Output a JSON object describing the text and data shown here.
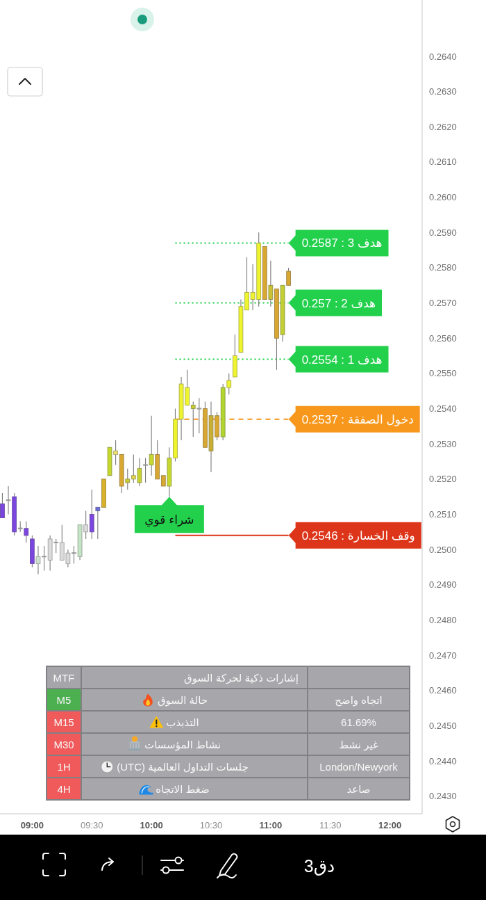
{
  "chart_data": [
    {
      "type": "candlestick",
      "x": [
        8.75,
        8.8,
        8.85,
        8.9,
        8.95,
        9.0,
        9.05,
        9.1,
        9.15,
        9.2,
        9.25,
        9.3,
        9.35,
        9.4,
        9.45,
        9.5,
        9.55,
        9.6,
        9.65,
        9.7,
        9.75,
        9.8,
        9.85,
        9.9,
        9.95,
        10.0,
        10.05,
        10.1,
        10.15,
        10.2,
        10.25,
        10.3,
        10.35,
        10.4,
        10.45,
        10.5,
        10.55,
        10.6,
        10.65,
        10.7,
        10.75,
        10.8,
        10.85,
        10.9,
        10.95,
        11.0,
        11.05,
        11.1,
        11.15
      ],
      "ohlc": [
        [
          0.2509,
          0.2516,
          0.2509,
          0.2513
        ],
        [
          0.2514,
          0.2518,
          0.251,
          0.2514
        ],
        [
          0.2515,
          0.2516,
          0.2504,
          0.2505
        ],
        [
          0.2506,
          0.2508,
          0.2505,
          0.2506
        ],
        [
          0.2506,
          0.2508,
          0.2502,
          0.2504
        ],
        [
          0.2503,
          0.2504,
          0.2495,
          0.2496
        ],
        [
          0.2496,
          0.2501,
          0.2493,
          0.2498
        ],
        [
          0.2498,
          0.2501,
          0.2494,
          0.2498
        ],
        [
          0.2497,
          0.2504,
          0.2494,
          0.2503
        ],
        [
          0.2502,
          0.2503,
          0.2499,
          0.2502
        ],
        [
          0.2502,
          0.2507,
          0.2497,
          0.2497
        ],
        [
          0.2496,
          0.25,
          0.2495,
          0.2499
        ],
        [
          0.2499,
          0.2501,
          0.2496,
          0.2499
        ],
        [
          0.2498,
          0.2507,
          0.2497,
          0.2507
        ],
        [
          0.2507,
          0.2511,
          0.2503,
          0.2505
        ],
        [
          0.2505,
          0.2517,
          0.2503,
          0.251
        ],
        [
          0.2511,
          0.2512,
          0.2503,
          0.2512
        ],
        [
          0.2512,
          0.252,
          0.2512,
          0.252
        ],
        [
          0.2521,
          0.2529,
          0.2521,
          0.2529
        ],
        [
          0.2528,
          0.2531,
          0.2524,
          0.2527
        ],
        [
          0.2527,
          0.2527,
          0.2516,
          0.2518
        ],
        [
          0.2519,
          0.2523,
          0.2517,
          0.252
        ],
        [
          0.252,
          0.2527,
          0.2519,
          0.2521
        ],
        [
          0.2519,
          0.2526,
          0.2518,
          0.2523
        ],
        [
          0.2524,
          0.2526,
          0.2519,
          0.2524
        ],
        [
          0.2524,
          0.2538,
          0.2521,
          0.2527
        ],
        [
          0.2527,
          0.2531,
          0.252,
          0.252
        ],
        [
          0.2521,
          0.2521,
          0.2518,
          0.2518
        ],
        [
          0.2518,
          0.2529,
          0.2515,
          0.2526
        ],
        [
          0.2526,
          0.254,
          0.2525,
          0.2537
        ],
        [
          0.2537,
          0.2549,
          0.2531,
          0.2547
        ],
        [
          0.2541,
          0.2551,
          0.2541,
          0.2546
        ],
        [
          0.2541,
          0.2542,
          0.2532,
          0.254
        ],
        [
          0.254,
          0.2543,
          0.2533,
          0.254
        ],
        [
          0.254,
          0.2542,
          0.2529,
          0.2529
        ],
        [
          0.2528,
          0.2542,
          0.2522,
          0.2538
        ],
        [
          0.2538,
          0.2539,
          0.2531,
          0.2532
        ],
        [
          0.2532,
          0.2547,
          0.2531,
          0.2546
        ],
        [
          0.2546,
          0.255,
          0.2544,
          0.2548
        ],
        [
          0.2549,
          0.2561,
          0.2549,
          0.2555
        ],
        [
          0.2556,
          0.2571,
          0.2556,
          0.2569
        ],
        [
          0.2568,
          0.2583,
          0.2568,
          0.2573
        ],
        [
          0.2571,
          0.2581,
          0.2568,
          0.2573
        ],
        [
          0.2571,
          0.259,
          0.2569,
          0.2587
        ],
        [
          0.2586,
          0.2586,
          0.2571,
          0.2571
        ],
        [
          0.2571,
          0.2582,
          0.2569,
          0.2575
        ],
        [
          0.2574,
          0.2574,
          0.2551,
          0.256
        ],
        [
          0.2561,
          0.2575,
          0.2559,
          0.2575
        ],
        [
          0.2579,
          0.258,
          0.2575,
          0.2575
        ]
      ],
      "colors": [
        "#7b45e0",
        "#9a9a9a",
        "#7b45e0",
        "#9a9a9a",
        "#7b45e0",
        "#7b45e0",
        "#cfe3d0",
        "#9a9a9a",
        "#dcdcdc",
        "#9a9a9a",
        "#dcdcdc",
        "#dcdcdc",
        "#9a9a9a",
        "#c5e3c5",
        "#dcdcdc",
        "#7b45e0",
        "#6d6fd8",
        "#d8b02a",
        "#c6d82e",
        "#f2e470",
        "#d8a832",
        "#c9cd32",
        "#e0d84a",
        "#c6d232",
        "#9a9a9a",
        "#c6d82e",
        "#d8a832",
        "#d8a832",
        "#c6d82e",
        "#eef52e",
        "#eef52e",
        "#eef52e",
        "#c9cd32",
        "#9a9a9a",
        "#d8a832",
        "#c9b032",
        "#d8a832",
        "#b2d62e",
        "#eef52e",
        "#eef52e",
        "#eef52e",
        "#eef52e",
        "#eef52e",
        "#eef52e",
        "#d8a832",
        "#c9c232",
        "#d8a832",
        "#c2cf32",
        "#d8a832"
      ],
      "series": [
        {
          "type": "line",
          "name": "هدف 3 : 0.2587",
          "color": "#22d04c",
          "line_style": "dotted",
          "values": [
            null,
            null,
            null,
            null,
            null,
            null,
            null,
            null,
            null,
            null,
            null,
            null,
            null,
            null,
            null,
            null,
            null,
            null,
            null,
            null,
            null,
            null,
            null,
            null,
            null,
            null,
            null,
            null,
            null,
            0.2587,
            0.2587,
            0.2587,
            0.2587,
            0.2587,
            0.2587,
            0.2587,
            0.2587,
            0.2587,
            0.2587,
            0.2587,
            0.2587,
            0.2587,
            0.2587,
            0.2587,
            0.2587,
            0.2587,
            0.2587,
            0.2587,
            0.2587
          ]
        },
        {
          "type": "line",
          "name": "هدف 2 : 0.257",
          "color": "#22d04c",
          "line_style": "dotted",
          "values": [
            null,
            null,
            null,
            null,
            null,
            null,
            null,
            null,
            null,
            null,
            null,
            null,
            null,
            null,
            null,
            null,
            null,
            null,
            null,
            null,
            null,
            null,
            null,
            null,
            null,
            null,
            null,
            null,
            null,
            0.257,
            0.257,
            0.257,
            0.257,
            0.257,
            0.257,
            0.257,
            0.257,
            0.257,
            0.257,
            0.257,
            0.257,
            0.257,
            0.257,
            0.257,
            0.257,
            0.257,
            0.257,
            0.257,
            0.257
          ]
        },
        {
          "type": "line",
          "name": "هدف 1 : 0.2554",
          "color": "#22d04c",
          "line_style": "dotted",
          "values": [
            null,
            null,
            null,
            null,
            null,
            null,
            null,
            null,
            null,
            null,
            null,
            null,
            null,
            null,
            null,
            null,
            null,
            null,
            null,
            null,
            null,
            null,
            null,
            null,
            null,
            null,
            null,
            null,
            null,
            0.2554,
            0.2554,
            0.2554,
            0.2554,
            0.2554,
            0.2554,
            0.2554,
            0.2554,
            0.2554,
            0.2554,
            0.2554,
            0.2554,
            0.2554,
            0.2554,
            0.2554,
            0.2554,
            0.2554,
            0.2554,
            0.2554,
            0.2554
          ]
        },
        {
          "type": "line",
          "name": "دخول الصفقة : 0.2537",
          "color": "#f7971c",
          "line_style": "dashed",
          "values": [
            null,
            null,
            null,
            null,
            null,
            null,
            null,
            null,
            null,
            null,
            null,
            null,
            null,
            null,
            null,
            null,
            null,
            null,
            null,
            null,
            null,
            null,
            null,
            null,
            null,
            null,
            null,
            null,
            null,
            0.2537,
            0.2537,
            0.2537,
            0.2537,
            0.2537,
            0.2537,
            0.2537,
            0.2537,
            0.2537,
            0.2537,
            0.2537,
            0.2537,
            0.2537,
            0.2537,
            0.2537,
            0.2537,
            0.2537,
            0.2537,
            0.2537,
            0.2537
          ]
        },
        {
          "type": "line",
          "name": "وقف الخسارة : 0.2546",
          "color": "#dd3519",
          "line_style": "solid",
          "values": [
            null,
            null,
            null,
            null,
            null,
            null,
            null,
            null,
            null,
            null,
            null,
            null,
            null,
            null,
            null,
            null,
            null,
            null,
            null,
            null,
            null,
            null,
            null,
            null,
            null,
            null,
            null,
            null,
            null,
            0.2504,
            0.2504,
            0.2504,
            0.2504,
            0.2504,
            0.2504,
            0.2504,
            0.2504,
            0.2504,
            0.2504,
            0.2504,
            0.2504,
            0.2504,
            0.2504,
            0.2504,
            0.2504,
            0.2504,
            0.2504,
            0.2504,
            0.2504
          ]
        }
      ],
      "annotations": [
        {
          "text": "شراء قوي",
          "x": 10.15,
          "y": 0.2515
        },
        "3دق"
      ],
      "xlim": [
        8.73,
        12.27
      ],
      "ylim": [
        0.2425,
        0.2656
      ],
      "xticks": [
        {
          "value": 9,
          "label": "09:00"
        },
        {
          "value": 9.5,
          "label": "09:30"
        },
        {
          "value": 10,
          "label": "10:00"
        },
        {
          "value": 10.5,
          "label": "10:30"
        },
        {
          "value": 11,
          "label": "11:00"
        },
        {
          "value": 11.5,
          "label": "11:30"
        },
        {
          "value": 12,
          "label": "12:00"
        }
      ],
      "yticks": [
        {
          "value": 0.243,
          "label": "0.2430"
        },
        {
          "value": 0.244,
          "label": "0.2440"
        },
        {
          "value": 0.245,
          "label": "0.2450"
        },
        {
          "value": 0.246,
          "label": "0.2460"
        },
        {
          "value": 0.247,
          "label": "0.2470"
        },
        {
          "value": 0.248,
          "label": "0.2480"
        },
        {
          "value": 0.249,
          "label": "0.2490"
        },
        {
          "value": 0.25,
          "label": "0.2500"
        },
        {
          "value": 0.251,
          "label": "0.2510"
        },
        {
          "value": 0.252,
          "label": "0.2520"
        },
        {
          "value": 0.253,
          "label": "0.2530"
        },
        {
          "value": 0.254,
          "label": "0.2540"
        },
        {
          "value": 0.255,
          "label": "0.2550"
        },
        {
          "value": 0.256,
          "label": "0.2560"
        },
        {
          "value": 0.257,
          "label": "0.2570"
        },
        {
          "value": 0.258,
          "label": "0.2580"
        },
        {
          "value": 0.259,
          "label": "0.2590"
        },
        {
          "value": 0.26,
          "label": "0.2600"
        },
        {
          "value": 0.261,
          "label": "0.2610"
        },
        {
          "value": 0.262,
          "label": "0.2620"
        },
        {
          "value": 0.263,
          "label": "0.2630"
        },
        {
          "value": 0.264,
          "label": "0.2640"
        }
      ]
    },
    {
      "type": "other",
      "title": "إشارات ذكية لحركة السوق",
      "annotations": [
        "MTF",
        "M5",
        "حالة السوق",
        "اتجاه واضح",
        "M15",
        "التذبذب",
        "61.69%",
        "M30",
        "نشاط المؤسسات",
        "غير نشط",
        "1H",
        "جلسات التداول العالمية (UTC)",
        "London/Newyork",
        "4H",
        "ضغط الاتجاه",
        "صاعد"
      ],
      "colors": [
        "#a6a6aa",
        "#4caf50",
        "#f05a5a",
        "#f05a5a",
        "#f05a5a",
        "#f05a5a"
      ]
    }
  ]
}
